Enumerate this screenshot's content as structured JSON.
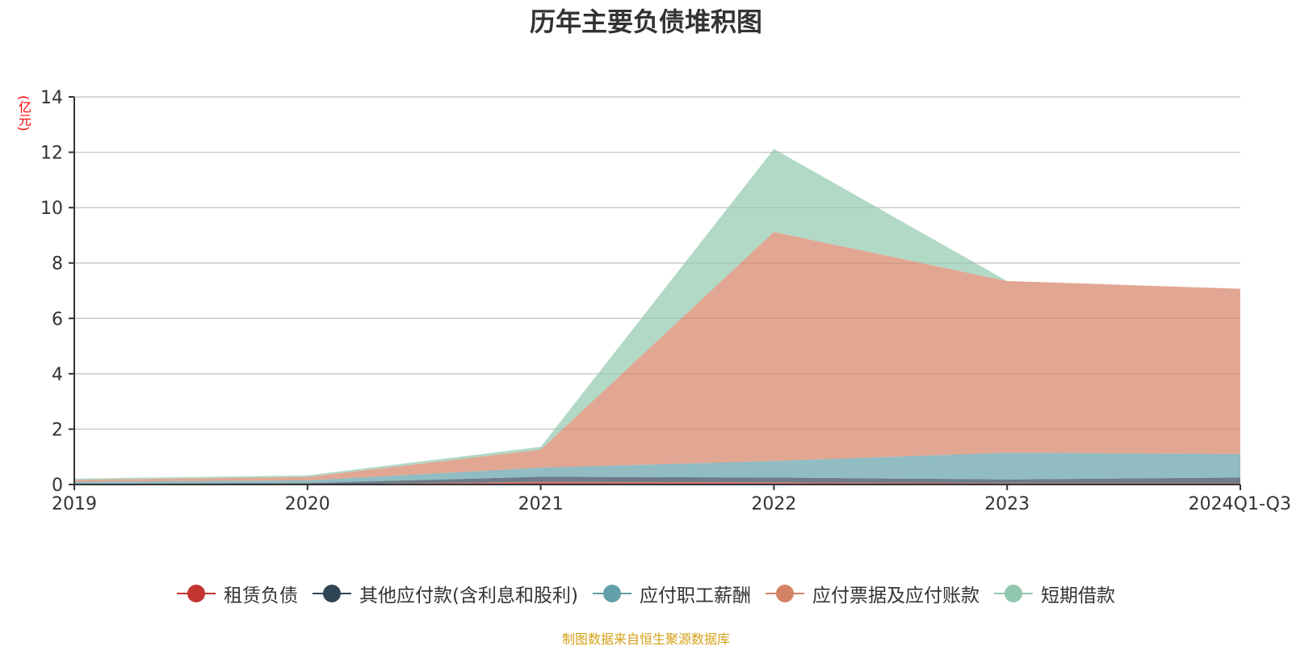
{
  "chart_data": {
    "type": "area",
    "stacked": true,
    "title": "历年主要负债堆积图",
    "y_unit": "(亿元)",
    "categories": [
      "2019",
      "2020",
      "2021",
      "2022",
      "2023",
      "2024Q1-Q3"
    ],
    "ylim": [
      0,
      14
    ],
    "yticks": [
      0,
      2,
      4,
      6,
      8,
      10,
      12,
      14
    ],
    "grid": true,
    "legend_position": "bottom",
    "series": [
      {
        "name": "租赁负债",
        "color": "#c23531",
        "values": [
          0.0,
          0.0,
          0.1,
          0.08,
          0.05,
          0.05
        ]
      },
      {
        "name": "其他应付款(含利息和股利)",
        "color": "#2f4554",
        "values": [
          0.03,
          0.05,
          0.18,
          0.17,
          0.13,
          0.2
        ]
      },
      {
        "name": "应付职工薪酬",
        "color": "#61a0a8",
        "values": [
          0.07,
          0.1,
          0.33,
          0.6,
          0.97,
          0.85
        ]
      },
      {
        "name": "应付票据及应付账款",
        "color": "#d48265",
        "values": [
          0.07,
          0.12,
          0.65,
          8.27,
          6.2,
          5.97
        ]
      },
      {
        "name": "短期借款",
        "color": "#91c7ae",
        "values": [
          0.04,
          0.06,
          0.1,
          3.0,
          0.0,
          0.0
        ]
      }
    ]
  },
  "source_note": "制图数据来自恒生聚源数据库"
}
